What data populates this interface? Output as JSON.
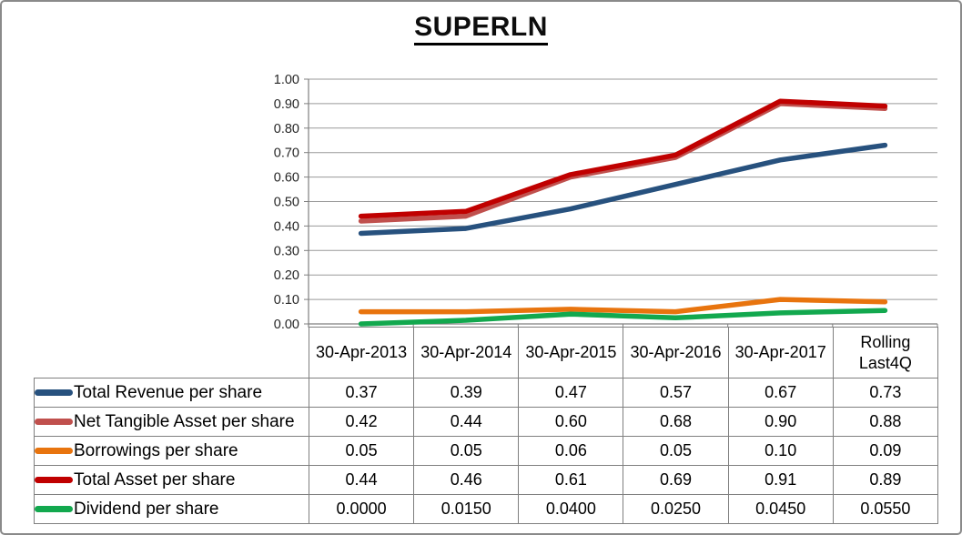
{
  "title": "SUPERLN",
  "colors": {
    "frame_border": "#8A8A8A",
    "gridline": "#9A9A9A",
    "axis": "#7F7F7F",
    "table_border": "#7F7F7F",
    "axis_label_text": "#262626",
    "table_text": "#000000"
  },
  "chart_data": {
    "type": "line",
    "title": "SUPERLN",
    "categories": [
      "30-Apr-2013",
      "30-Apr-2014",
      "30-Apr-2015",
      "30-Apr-2016",
      "30-Apr-2017",
      "Rolling\nLast4Q"
    ],
    "series": [
      {
        "name": "Total Revenue per share",
        "color": "#27517E",
        "values": [
          0.37,
          0.39,
          0.47,
          0.57,
          0.67,
          0.73
        ],
        "labels": [
          "0.37",
          "0.39",
          "0.47",
          "0.57",
          "0.67",
          "0.73"
        ]
      },
      {
        "name": "Net Tangible Asset per share",
        "color": "#C0504D",
        "values": [
          0.42,
          0.44,
          0.6,
          0.68,
          0.9,
          0.88
        ],
        "labels": [
          "0.42",
          "0.44",
          "0.60",
          "0.68",
          "0.90",
          "0.88"
        ]
      },
      {
        "name": "Borrowings per share",
        "color": "#E8740E",
        "values": [
          0.05,
          0.05,
          0.06,
          0.05,
          0.1,
          0.09
        ],
        "labels": [
          "0.05",
          "0.05",
          "0.06",
          "0.05",
          "0.10",
          "0.09"
        ]
      },
      {
        "name": "Total Asset per share",
        "color": "#C00000",
        "values": [
          0.44,
          0.46,
          0.61,
          0.69,
          0.91,
          0.89
        ],
        "labels": [
          "0.44",
          "0.46",
          "0.61",
          "0.69",
          "0.91",
          "0.89"
        ]
      },
      {
        "name": "Dividend per share",
        "color": "#12A84E",
        "values": [
          0.0,
          0.015,
          0.04,
          0.025,
          0.045,
          0.055
        ],
        "labels": [
          "0.0000",
          "0.0150",
          "0.0400",
          "0.0250",
          "0.0450",
          "0.0550"
        ]
      }
    ],
    "ylim": [
      0,
      1
    ],
    "y_tick_step": 0.1,
    "y_ticks": [
      "1.00",
      "0.90",
      "0.80",
      "0.70",
      "0.60",
      "0.50",
      "0.40",
      "0.30",
      "0.20",
      "0.10",
      "0.00"
    ],
    "grid": true,
    "legend_position": "data-table-row-headers",
    "xlabel": "",
    "ylabel": ""
  }
}
